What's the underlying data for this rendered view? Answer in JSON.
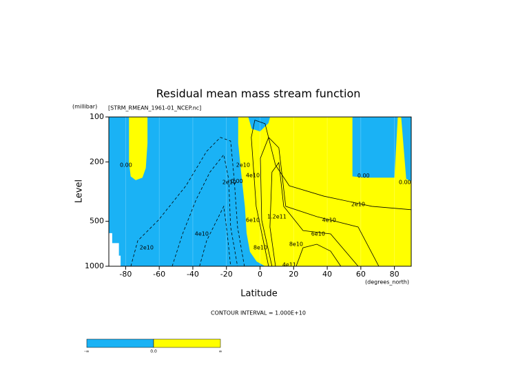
{
  "chart_data": {
    "type": "contour",
    "title": "Residual mean mass stream function",
    "subtitle": "[STRM_RMEAN_1961-01_NCEP.nc]",
    "y_units": "(millibar)",
    "x_units": "(degrees_north)",
    "xlabel": "Latitude",
    "ylabel": "Level",
    "note": "CONTOUR INTERVAL = 1.000E+10",
    "xlim": [
      -90,
      90
    ],
    "xticks": [
      -80,
      -60,
      -40,
      -20,
      0,
      20,
      40,
      60,
      80
    ],
    "ylim": [
      100,
      1000
    ],
    "yticks": [
      100,
      200,
      500,
      1000
    ],
    "ylog": true,
    "y_inverted": true,
    "negative_color": "#1ab2f5",
    "positive_color": "#ffff00",
    "missing_color": "#ffffff",
    "positive_regions": [
      [
        [
          -78,
          100
        ],
        [
          -67,
          100
        ],
        [
          -67,
          150
        ],
        [
          -68,
          220
        ],
        [
          -70,
          255
        ],
        [
          -74,
          265
        ],
        [
          -77,
          250
        ],
        [
          -78,
          200
        ]
      ],
      [
        [
          -13,
          100
        ],
        [
          -7,
          100
        ],
        [
          -5,
          120
        ],
        [
          0,
          125
        ],
        [
          5,
          110
        ],
        [
          6,
          100
        ],
        [
          55,
          100
        ],
        [
          55,
          250
        ],
        [
          62,
          255
        ],
        [
          80,
          255
        ],
        [
          82,
          100
        ],
        [
          84,
          100
        ],
        [
          87,
          260
        ],
        [
          90,
          270
        ],
        [
          90,
          1000
        ],
        [
          3,
          1000
        ],
        [
          -2,
          930
        ],
        [
          -6,
          800
        ],
        [
          -8,
          600
        ],
        [
          -9,
          400
        ],
        [
          -11,
          250
        ],
        [
          -13,
          150
        ]
      ]
    ],
    "missing_regions": [
      [
        [
          -90,
          600
        ],
        [
          -88,
          600
        ],
        [
          -88,
          700
        ],
        [
          -84,
          700
        ],
        [
          -84,
          850
        ],
        [
          -83,
          850
        ],
        [
          -83,
          1000
        ],
        [
          -90,
          1000
        ]
      ]
    ],
    "contours": [
      {
        "style": "dashed",
        "points": [
          [
            -76.9,
            1000
          ],
          [
            -72.8,
            675
          ],
          [
            -60.5,
            491
          ],
          [
            -44.1,
            289
          ],
          [
            -31.8,
            170
          ],
          [
            -23.6,
            137
          ],
          [
            -17.5,
            145
          ],
          [
            -15.4,
            260
          ],
          [
            -13.4,
            546
          ],
          [
            -9.3,
            1000
          ]
        ]
      },
      {
        "style": "dashed",
        "points": [
          [
            -52.3,
            1000
          ],
          [
            -46.1,
            607
          ],
          [
            -38,
            357
          ],
          [
            -29.8,
            234
          ],
          [
            -21.6,
            179
          ],
          [
            -18.7,
            260
          ],
          [
            -17.5,
            546
          ],
          [
            -13.4,
            1000
          ]
        ]
      },
      {
        "style": "dashed",
        "points": [
          [
            -36,
            1000
          ],
          [
            -31.8,
            675
          ],
          [
            -25.7,
            491
          ],
          [
            -21.6,
            397
          ],
          [
            -19.5,
            607
          ],
          [
            -17.5,
            1000
          ]
        ]
      },
      {
        "style": "solid",
        "points": [
          [
            5.1,
            1000
          ],
          [
            -2.3,
            397
          ],
          [
            -5.2,
            137
          ],
          [
            -3.1,
            105
          ],
          [
            3,
            111
          ],
          [
            9.2,
            210
          ],
          [
            17.4,
            289
          ],
          [
            37.9,
            339
          ],
          [
            66.6,
            397
          ],
          [
            90,
            418
          ]
        ]
      },
      {
        "style": "solid",
        "points": [
          [
            7.1,
            1000
          ],
          [
            1,
            491
          ],
          [
            0.2,
            189
          ],
          [
            5.1,
            137
          ],
          [
            11.2,
            161
          ],
          [
            15.3,
            397
          ],
          [
            33.8,
            465
          ],
          [
            58.4,
            546
          ],
          [
            70.7,
            1000
          ]
        ]
      },
      {
        "style": "solid",
        "points": [
          [
            9.2,
            1000
          ],
          [
            5.9,
            546
          ],
          [
            7.1,
            234
          ],
          [
            11.2,
            202
          ],
          [
            14.1,
            397
          ],
          [
            25.6,
            577
          ],
          [
            42,
            607
          ],
          [
            58.4,
            1000
          ]
        ]
      },
      {
        "style": "solid",
        "points": [
          [
            21.5,
            1000
          ],
          [
            25.6,
            752
          ],
          [
            33.8,
            712
          ],
          [
            42,
            792
          ],
          [
            48.1,
            1000
          ]
        ]
      }
    ],
    "contour_labels": [
      {
        "text": "0.00",
        "at": [
          -79.8,
          210
        ]
      },
      {
        "text": "2e10",
        "at": [
          -18.3,
          274
        ]
      },
      {
        "text": "0.00",
        "at": [
          -13.8,
          270
        ]
      },
      {
        "text": "2e10",
        "at": [
          -10.1,
          210
        ]
      },
      {
        "text": "4e10",
        "at": [
          -4.3,
          246
        ]
      },
      {
        "text": "4e10",
        "at": [
          -34.7,
          607
        ]
      },
      {
        "text": "2e10",
        "at": [
          -67.5,
          752
        ]
      },
      {
        "text": "6e10",
        "at": [
          -4.3,
          491
        ]
      },
      {
        "text": "1.2e11",
        "at": [
          10,
          465
        ]
      },
      {
        "text": "8e10",
        "at": [
          0.2,
          752
        ]
      },
      {
        "text": "8e10",
        "at": [
          21.5,
          712
        ]
      },
      {
        "text": "6e10",
        "at": [
          34.6,
          607
        ]
      },
      {
        "text": "4e10",
        "at": [
          41.1,
          491
        ]
      },
      {
        "text": "2e10",
        "at": [
          58.4,
          385
        ]
      },
      {
        "text": "0.00",
        "at": [
          61.6,
          248
        ]
      },
      {
        "text": "0.00",
        "at": [
          86.2,
          274
        ]
      },
      {
        "text": "4e11",
        "at": [
          17.4,
          980
        ]
      }
    ],
    "colorbar": {
      "labels": [
        "-∞",
        "0.0",
        "∞"
      ]
    }
  }
}
